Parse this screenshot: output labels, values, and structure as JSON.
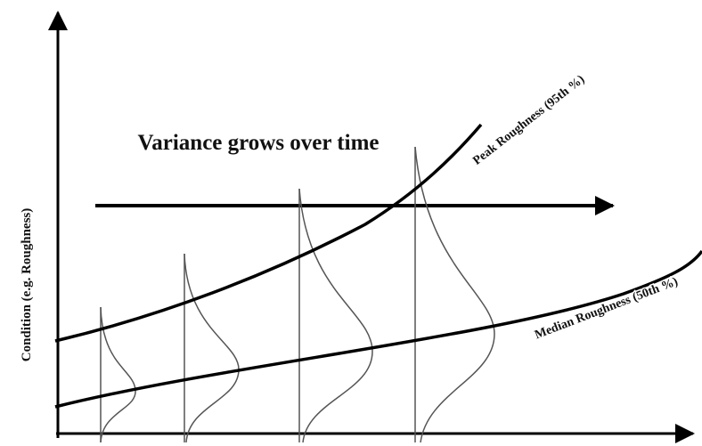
{
  "title": "Variance grows over time",
  "y_axis_label": "Condition (e.g. Roughness)",
  "curves": [
    {
      "label": "Peak Roughness (95th %)"
    },
    {
      "label": "Median Roughness (50th %)"
    }
  ]
}
